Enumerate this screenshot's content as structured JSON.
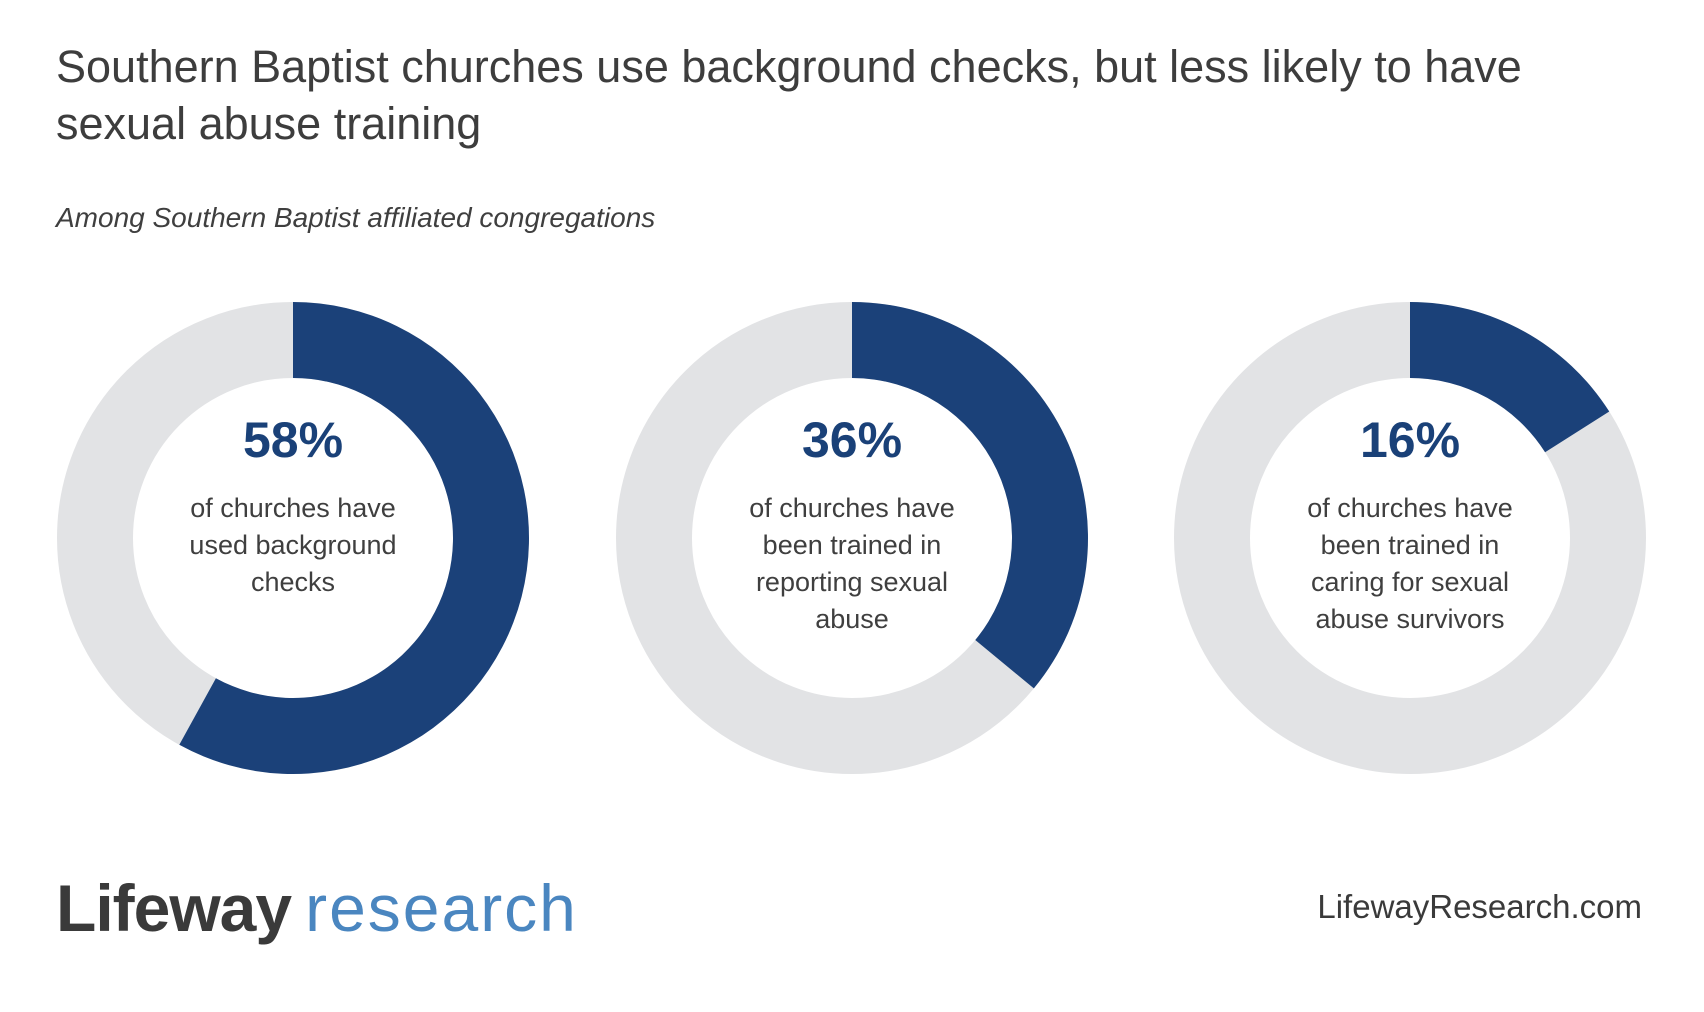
{
  "title": "Southern Baptist churches use background checks, but less likely to have sexual abuse training",
  "subtitle": "Among Southern Baptist affiliated congregations",
  "colors": {
    "filled": "#1b4179",
    "remainder": "#e2e3e5"
  },
  "chart_data": [
    {
      "type": "pie",
      "value": 58,
      "label": "58%",
      "description": "of churches have used background checks"
    },
    {
      "type": "pie",
      "value": 36,
      "label": "36%",
      "description": "of churches have been trained in reporting sexual abuse"
    },
    {
      "type": "pie",
      "value": 16,
      "label": "16%",
      "description": "of churches have been trained in caring for sexual abuse survivors"
    }
  ],
  "footer": {
    "logo_primary": "Lifeway",
    "logo_secondary": "research",
    "website": "LifewayResearch.com"
  }
}
